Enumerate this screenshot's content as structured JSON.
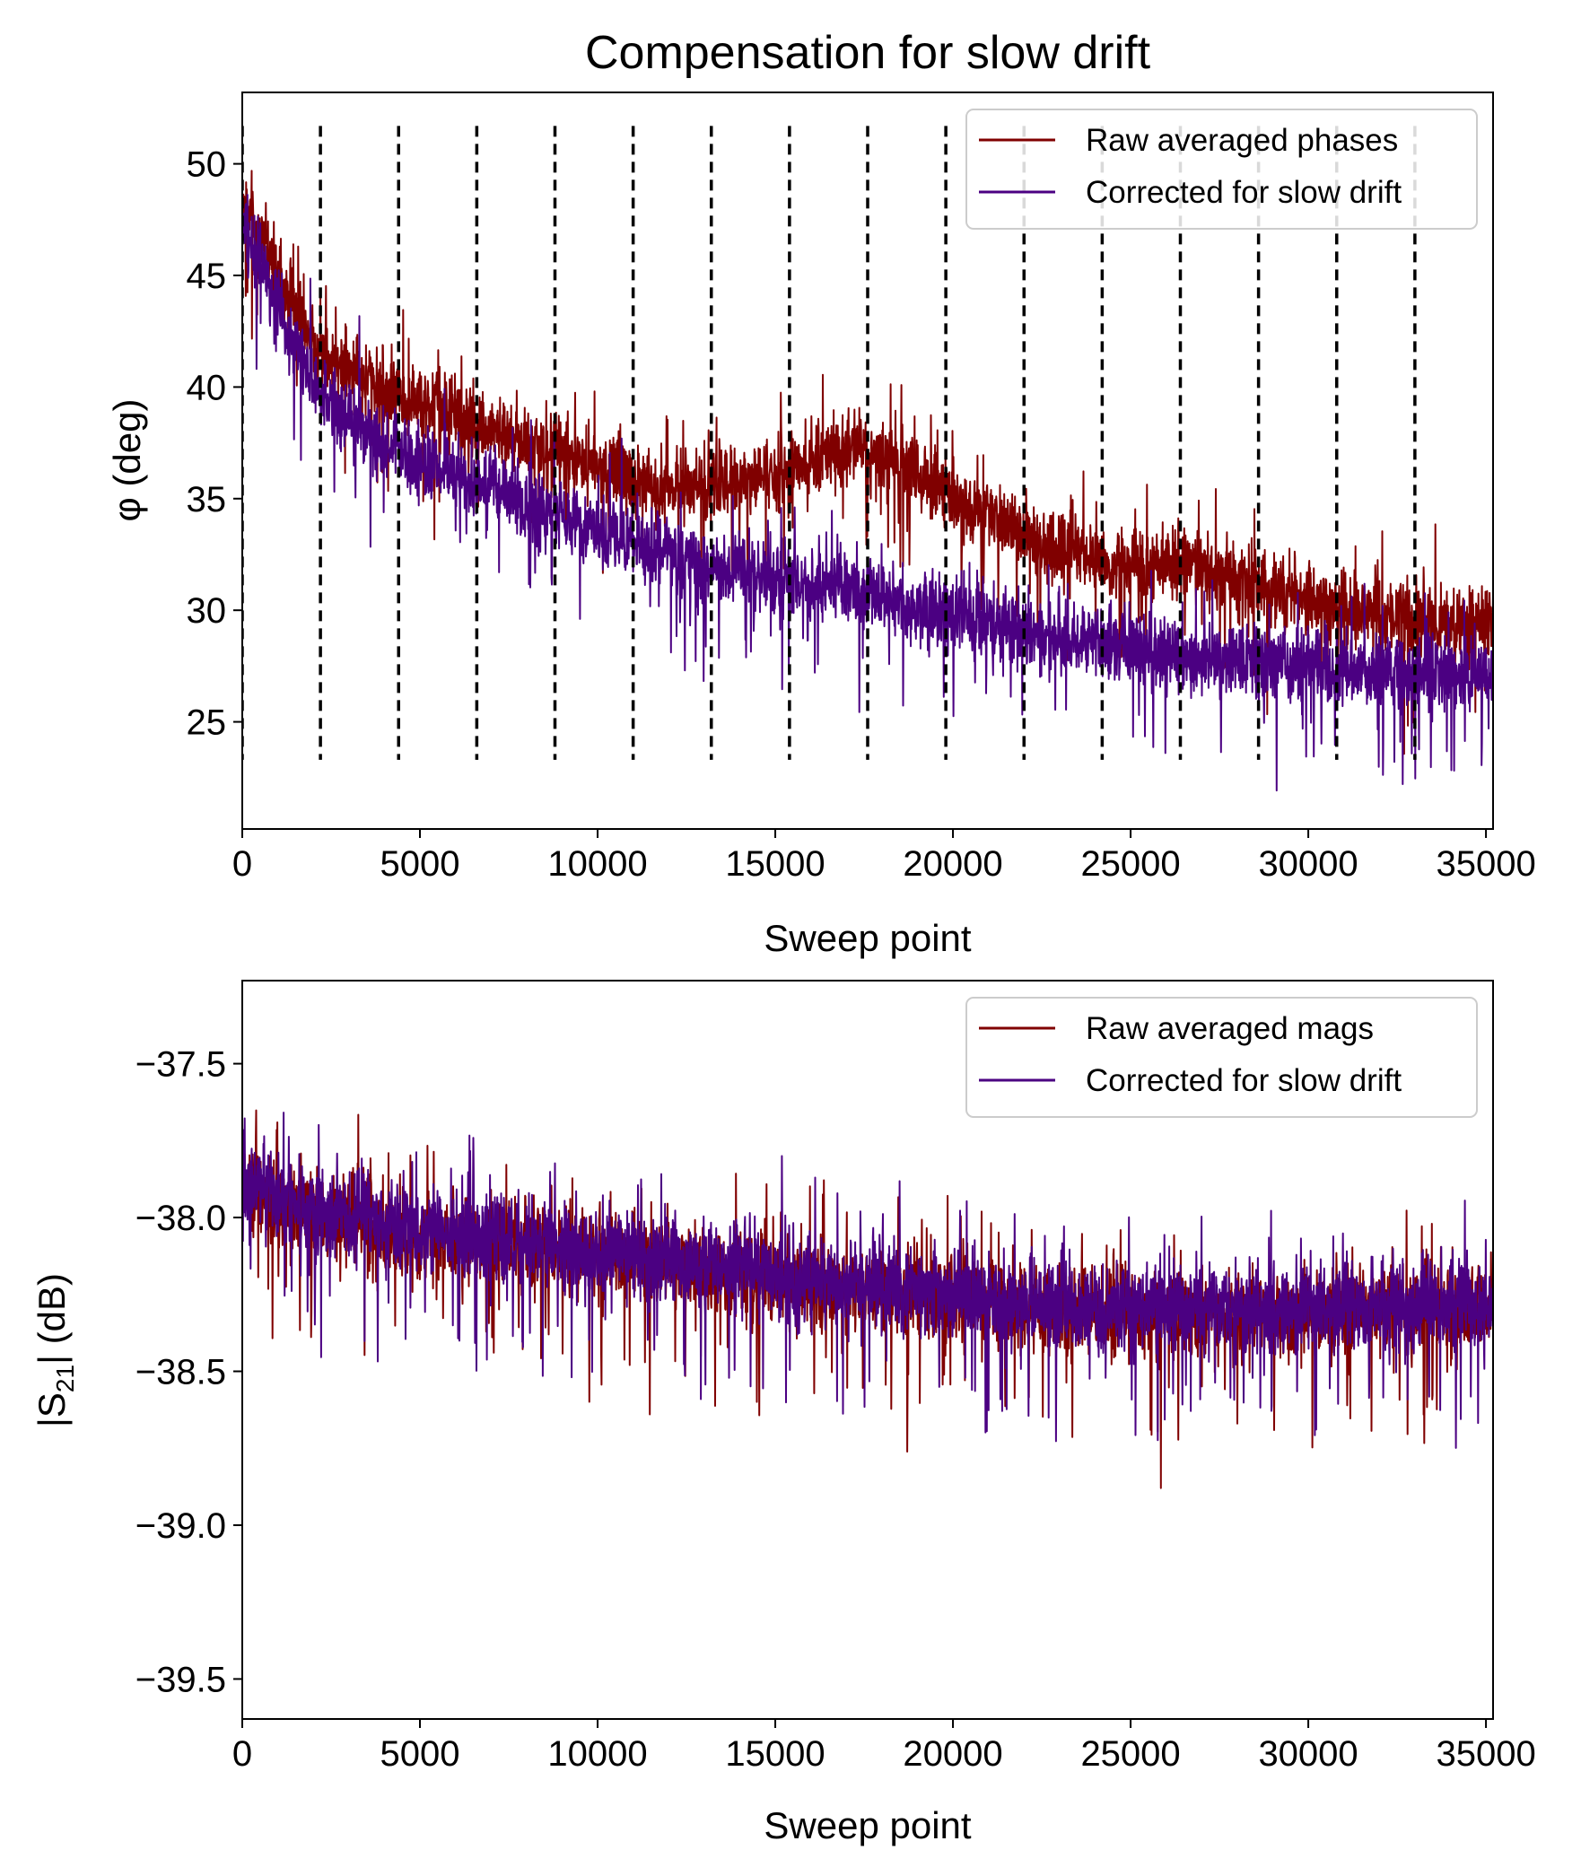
{
  "figure": {
    "title": "Compensation for slow drift"
  },
  "chart_data": [
    {
      "type": "line",
      "title": "Compensation for slow drift",
      "xlabel": "Sweep point",
      "ylabel": "φ (deg)",
      "xlim": [
        0,
        35200
      ],
      "ylim": [
        20.2,
        53.2
      ],
      "xticks": [
        0,
        5000,
        10000,
        15000,
        20000,
        25000,
        30000,
        35000
      ],
      "xtick_labels": [
        "0",
        "5000",
        "10000",
        "15000",
        "20000",
        "25000",
        "30000",
        "35000"
      ],
      "yticks": [
        25,
        30,
        35,
        40,
        45,
        50
      ],
      "ytick_labels": [
        "25",
        "30",
        "35",
        "40",
        "45",
        "50"
      ],
      "grid": false,
      "legend_position": "upper right",
      "series": [
        {
          "name": "Raw averaged phases",
          "color": "#800000",
          "noise_amplitude": 3.2,
          "baseline_x": [
            0,
            1000,
            2200,
            4400,
            6600,
            8800,
            11000,
            13200,
            14500,
            15500,
            16500,
            17500,
            18500,
            19500,
            20500,
            22000,
            24200,
            26500,
            28600,
            30800,
            33000,
            35200
          ],
          "baseline_y": [
            48.5,
            45,
            41.5,
            39.7,
            38.4,
            37.1,
            35.8,
            35.4,
            35.8,
            36.5,
            37.0,
            37.3,
            36.8,
            35.6,
            34.5,
            33.3,
            32.0,
            32.0,
            31.0,
            30.3,
            29.7,
            29.2
          ]
        },
        {
          "name": "Corrected for slow drift",
          "color": "#4b0082",
          "noise_amplitude": 3.2,
          "baseline_x": [
            0,
            1000,
            2200,
            4400,
            6600,
            8800,
            11000,
            13200,
            15400,
            17600,
            19800,
            22000,
            24200,
            26400,
            28600,
            30800,
            33000,
            35200
          ],
          "baseline_y": [
            47.5,
            43.5,
            39.5,
            37.0,
            35.6,
            34.3,
            33.0,
            31.9,
            31.3,
            30.8,
            29.9,
            29.1,
            28.5,
            28.0,
            27.7,
            27.3,
            27.1,
            26.9
          ]
        }
      ],
      "vlines": {
        "style": "dashed",
        "color": "#000000",
        "x": [
          0,
          2200,
          4400,
          6600,
          8800,
          11000,
          13200,
          15400,
          17600,
          19800,
          22000,
          24200,
          26400,
          28600,
          30800,
          33000
        ],
        "ymin": 23.3,
        "ymax": 51.7
      }
    },
    {
      "type": "line",
      "title": "",
      "xlabel": "Sweep point",
      "ylabel": "|S21| (dB)",
      "xlim": [
        0,
        35200
      ],
      "ylim": [
        -39.63,
        -37.23
      ],
      "xticks": [
        0,
        5000,
        10000,
        15000,
        20000,
        25000,
        30000,
        35000
      ],
      "xtick_labels": [
        "0",
        "5000",
        "10000",
        "15000",
        "20000",
        "25000",
        "30000",
        "35000"
      ],
      "yticks": [
        -39.5,
        -39.0,
        -38.5,
        -38.0,
        -37.5
      ],
      "ytick_labels": [
        "−39.5",
        "−39.0",
        "−38.5",
        "−38.0",
        "−37.5"
      ],
      "grid": false,
      "legend_position": "upper right",
      "series": [
        {
          "name": "Raw averaged mags",
          "color": "#800000",
          "noise_amplitude": 0.28,
          "baseline_x": [
            0,
            2000,
            6000,
            10000,
            15000,
            20000,
            25000,
            30000,
            35200
          ],
          "baseline_y": [
            -37.9,
            -38.0,
            -38.07,
            -38.13,
            -38.2,
            -38.27,
            -38.32,
            -38.31,
            -38.3
          ]
        },
        {
          "name": "Corrected for slow drift",
          "color": "#4b0082",
          "noise_amplitude": 0.28,
          "baseline_x": [
            0,
            2000,
            6000,
            10000,
            15000,
            20000,
            25000,
            30000,
            35200
          ],
          "baseline_y": [
            -37.88,
            -37.98,
            -38.05,
            -38.11,
            -38.18,
            -38.25,
            -38.3,
            -38.29,
            -38.28
          ]
        }
      ]
    }
  ]
}
